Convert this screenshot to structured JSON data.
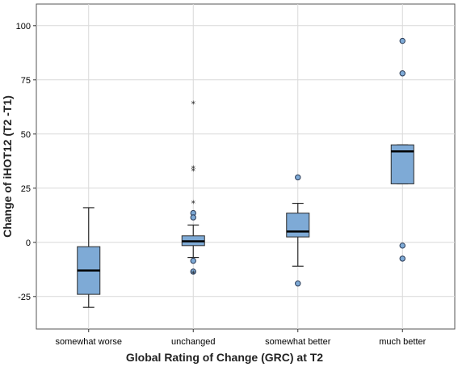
{
  "colors": {
    "box_fill": "#7eaad6",
    "box_stroke": "#2a2a2a",
    "grid": "#d9d9d9",
    "outlier_fill": "#7eaad6"
  },
  "chart_data": {
    "type": "boxplot",
    "xlabel": "Global Rating of Change (GRC) at T2",
    "ylabel": "Change of iHOT12 (T2 -T1)",
    "ylim": [
      -40,
      110
    ],
    "yticks": [
      -25,
      0,
      25,
      50,
      75,
      100
    ],
    "grid": true,
    "categories": [
      "somewhat worse",
      "unchanged",
      "somewhat better",
      "much better"
    ],
    "boxes": [
      {
        "category": "somewhat worse",
        "whisker_low": -30,
        "q1": -24,
        "median": -13,
        "q3": -2,
        "whisker_high": 16,
        "outliers": [],
        "extremes": []
      },
      {
        "category": "unchanged",
        "whisker_low": -7,
        "q1": -1.5,
        "median": 0.5,
        "q3": 3,
        "whisker_high": 8,
        "outliers": [
          13.5,
          11.5,
          -8.5,
          -13.5
        ],
        "extremes": [
          64,
          34,
          33,
          18,
          -14.5
        ]
      },
      {
        "category": "somewhat better",
        "whisker_low": -11,
        "q1": 2.5,
        "median": 5,
        "q3": 13.5,
        "whisker_high": 18,
        "outliers": [
          30,
          -19
        ],
        "extremes": []
      },
      {
        "category": "much better",
        "whisker_low": 27,
        "q1": 27,
        "median": 42,
        "q3": 45,
        "whisker_high": 45,
        "outliers": [
          93,
          78,
          -1.5,
          -7.5
        ],
        "extremes": []
      }
    ]
  }
}
